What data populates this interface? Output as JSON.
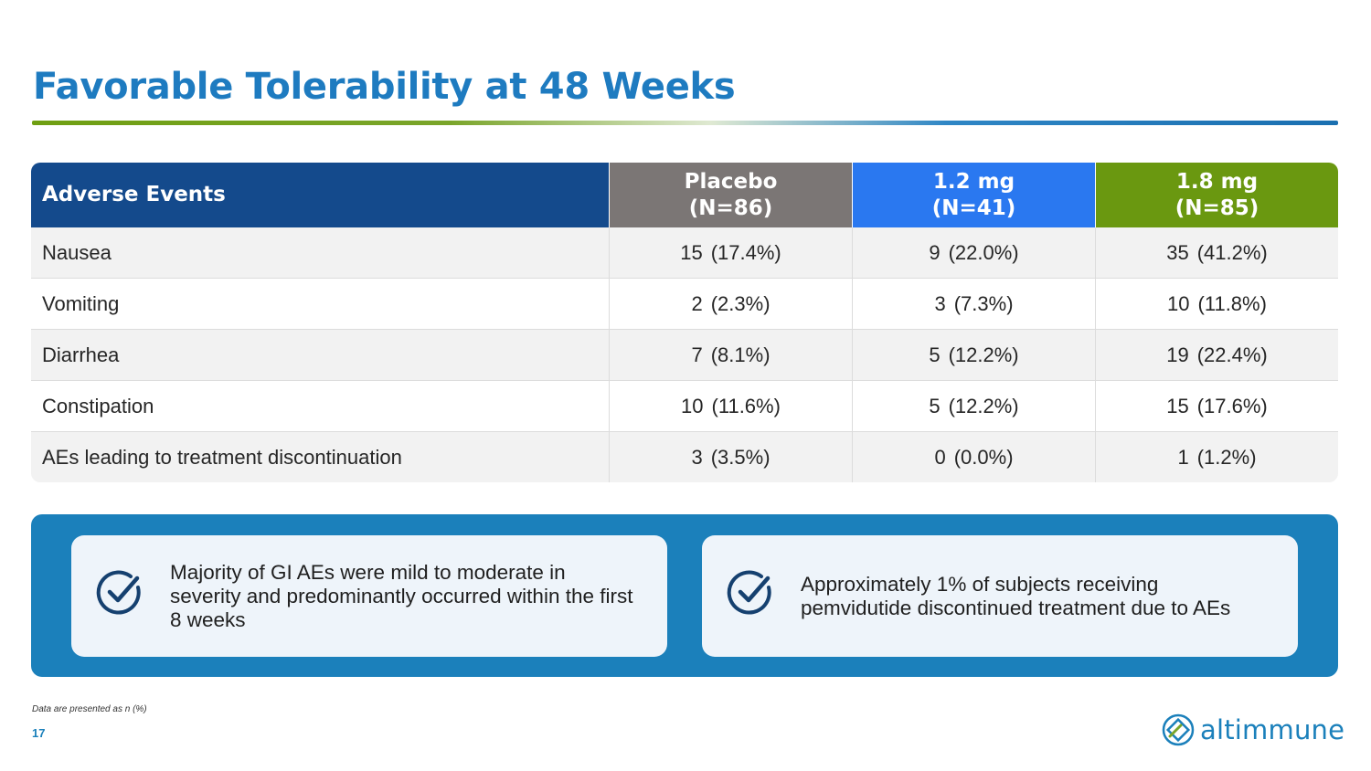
{
  "slide": {
    "title": "Favorable Tolerability at 48 Weeks",
    "page_number": "17",
    "footnote": "Data are presented as n (%)",
    "logo_text": "altimmune"
  },
  "table": {
    "headers": {
      "adverse_events": "Adverse Events",
      "placebo": "Placebo",
      "placebo_n": "(N=86)",
      "dose_1_2": "1.2 mg",
      "dose_1_2_n": "(N=41)",
      "dose_1_8": "1.8 mg",
      "dose_1_8_n": "(N=85)"
    },
    "rows": [
      {
        "event": "Nausea",
        "placebo_n": "15",
        "placebo_pct": "(17.4%)",
        "d12_n": "9",
        "d12_pct": "(22.0%)",
        "d18_n": "35",
        "d18_pct": "(41.2%)"
      },
      {
        "event": "Vomiting",
        "placebo_n": "2",
        "placebo_pct": "(2.3%)",
        "d12_n": "3",
        "d12_pct": "(7.3%)",
        "d18_n": "10",
        "d18_pct": "(11.8%)"
      },
      {
        "event": "Diarrhea",
        "placebo_n": "7",
        "placebo_pct": "(8.1%)",
        "d12_n": "5",
        "d12_pct": "(12.2%)",
        "d18_n": "19",
        "d18_pct": "(22.4%)"
      },
      {
        "event": "Constipation",
        "placebo_n": "10",
        "placebo_pct": "(11.6%)",
        "d12_n": "5",
        "d12_pct": "(12.2%)",
        "d18_n": "15",
        "d18_pct": "(17.6%)"
      },
      {
        "event": "AEs leading to treatment discontinuation",
        "placebo_n": "3",
        "placebo_pct": "(3.5%)",
        "d12_n": "0",
        "d12_pct": "(0.0%)",
        "d18_n": "1",
        "d18_pct": "(1.2%)"
      }
    ]
  },
  "callouts": [
    {
      "icon": "check-circle-icon",
      "text": "Majority of GI AEs were mild to moderate in severity and predominantly occurred within the first 8 weeks"
    },
    {
      "icon": "check-circle-icon",
      "text": "Approximately 1% of subjects receiving pemvidutide discontinued treatment due to AEs"
    }
  ],
  "colors": {
    "title_blue": "#1e7bc0",
    "header_navy": "#144a8c",
    "header_placebo": "#7b7675",
    "header_1_2": "#2a78f0",
    "header_1_8": "#6a9810",
    "callout_band": "#1b80bb"
  }
}
